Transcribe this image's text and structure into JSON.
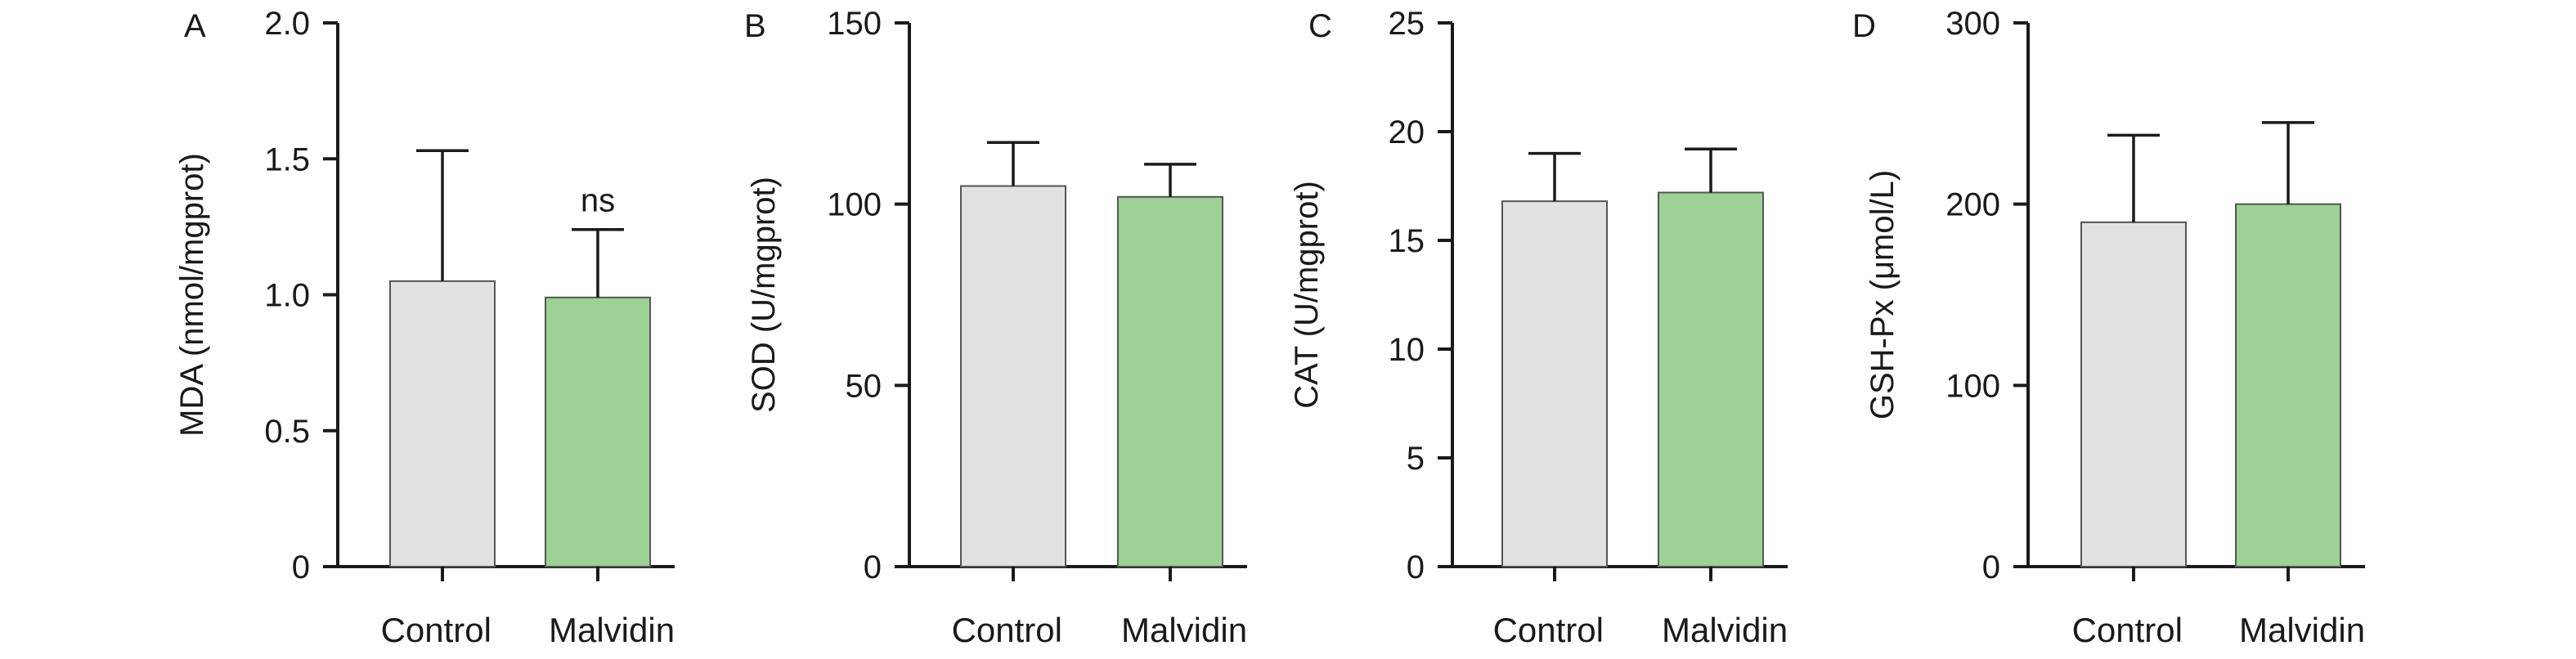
{
  "colors": {
    "control": "#e2e2e2",
    "malvidin": "#9dd196",
    "axis": "#1a1a1a"
  },
  "chart_data": [
    {
      "type": "bar",
      "panel": "A",
      "categories": [
        "Control",
        "Malvidin"
      ],
      "values": [
        1.05,
        0.99
      ],
      "error_upper": [
        1.53,
        1.24
      ],
      "ylabel": "MDA (nmol/mgprot)",
      "ylim": [
        0,
        2.0
      ],
      "yticks": [
        "0",
        "0.5",
        "1.0",
        "1.5",
        "2.0"
      ],
      "annotations": [
        "",
        "ns"
      ],
      "grid": false
    },
    {
      "type": "bar",
      "panel": "B",
      "categories": [
        "Control",
        "Malvidin"
      ],
      "values": [
        105,
        102
      ],
      "error_upper": [
        117,
        111
      ],
      "ylabel": "SOD (U/mgprot)",
      "ylim": [
        0,
        150
      ],
      "yticks": [
        "0",
        "50",
        "100",
        "150"
      ],
      "annotations": [
        "",
        ""
      ],
      "grid": false
    },
    {
      "type": "bar",
      "panel": "C",
      "categories": [
        "Control",
        "Malvidin"
      ],
      "values": [
        16.8,
        17.2
      ],
      "error_upper": [
        19.0,
        19.2
      ],
      "ylabel": "CAT (U/mgprot)",
      "ylim": [
        0,
        25
      ],
      "yticks": [
        "0",
        "5",
        "10",
        "15",
        "20",
        "25"
      ],
      "annotations": [
        "",
        ""
      ],
      "grid": false
    },
    {
      "type": "bar",
      "panel": "D",
      "categories": [
        "Control",
        "Malvidin"
      ],
      "values": [
        190,
        200
      ],
      "error_upper": [
        238,
        245
      ],
      "ylabel": "GSH-Px (μmol/L)",
      "ylim": [
        0,
        300
      ],
      "yticks": [
        "0",
        "100",
        "200",
        "300"
      ],
      "annotations": [
        "",
        ""
      ],
      "grid": false
    }
  ]
}
